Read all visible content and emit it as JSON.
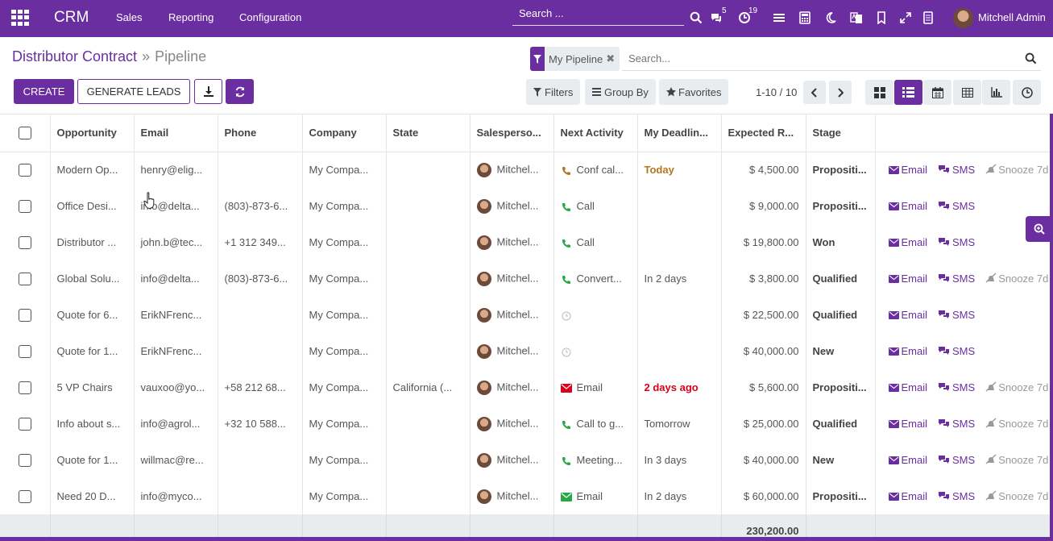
{
  "navbar": {
    "brand": "CRM",
    "menus": [
      "Sales",
      "Reporting",
      "Configuration"
    ],
    "search_placeholder": "Search ...",
    "chat_badge": "5",
    "activity_badge": "19",
    "user_name": "Mitchell Admin"
  },
  "breadcrumb": {
    "parent": "Distributor Contract",
    "separator": "»",
    "current": "Pipeline"
  },
  "buttons": {
    "create": "CREATE",
    "generate_leads": "GENERATE LEADS"
  },
  "search": {
    "facet_label": "My Pipeline",
    "facet_close": "✖",
    "placeholder": "Search..."
  },
  "filters": {
    "filters": "Filters",
    "group_by": "Group By",
    "favorites": "Favorites"
  },
  "pager": {
    "text": "1-10 / 10"
  },
  "table": {
    "headers": [
      "Opportunity",
      "Email",
      "Phone",
      "Company",
      "State",
      "Salesperso...",
      "Next Activity",
      "My Deadlin...",
      "Expected R...",
      "Stage"
    ],
    "rows": [
      {
        "opportunity": "Modern Op...",
        "email": "henry@elig...",
        "phone": "",
        "company": "My Compa...",
        "state": "",
        "salesperson": "Mitchel...",
        "activity": "Conf cal...",
        "activity_type": "phone-brown",
        "deadline": "Today",
        "deadline_style": "today",
        "revenue": "$ 4,500.00",
        "stage": "Propositi...",
        "email_action": "Email",
        "sms_action": "SMS",
        "snooze": "Snooze 7d"
      },
      {
        "opportunity": "Office Desi...",
        "email": "info@delta...",
        "phone": "(803)-873-6...",
        "company": "My Compa...",
        "state": "",
        "salesperson": "Mitchel...",
        "activity": "Call",
        "activity_type": "phone-green",
        "deadline": "",
        "deadline_style": "",
        "revenue": "$ 9,000.00",
        "stage": "Propositi...",
        "email_action": "Email",
        "sms_action": "SMS",
        "snooze": ""
      },
      {
        "opportunity": "Distributor ...",
        "email": "john.b@tec...",
        "phone": "+1 312 349...",
        "company": "My Compa...",
        "state": "",
        "salesperson": "Mitchel...",
        "activity": "Call",
        "activity_type": "phone-green",
        "deadline": "",
        "deadline_style": "",
        "revenue": "$ 19,800.00",
        "stage": "Won",
        "email_action": "Email",
        "sms_action": "SMS",
        "snooze": ""
      },
      {
        "opportunity": "Global Solu...",
        "email": "info@delta...",
        "phone": "(803)-873-6...",
        "company": "My Compa...",
        "state": "",
        "salesperson": "Mitchel...",
        "activity": "Convert...",
        "activity_type": "phone-green",
        "deadline": "In 2 days",
        "deadline_style": "",
        "revenue": "$ 3,800.00",
        "stage": "Qualified",
        "email_action": "Email",
        "sms_action": "SMS",
        "snooze": "Snooze 7d"
      },
      {
        "opportunity": "Quote for 6...",
        "email": "ErikNFrenc...",
        "phone": "",
        "company": "My Compa...",
        "state": "",
        "salesperson": "Mitchel...",
        "activity": "",
        "activity_type": "clock",
        "deadline": "",
        "deadline_style": "",
        "revenue": "$ 22,500.00",
        "stage": "Qualified",
        "email_action": "Email",
        "sms_action": "SMS",
        "snooze": ""
      },
      {
        "opportunity": "Quote for 1...",
        "email": "ErikNFrenc...",
        "phone": "",
        "company": "My Compa...",
        "state": "",
        "salesperson": "Mitchel...",
        "activity": "",
        "activity_type": "clock",
        "deadline": "",
        "deadline_style": "",
        "revenue": "$ 40,000.00",
        "stage": "New",
        "email_action": "Email",
        "sms_action": "SMS",
        "snooze": ""
      },
      {
        "opportunity": "5 VP Chairs",
        "email": "vauxoo@yo...",
        "phone": "+58 212 68...",
        "company": "My Compa...",
        "state": "California (...",
        "salesperson": "Mitchel...",
        "activity": "Email",
        "activity_type": "mail-red",
        "deadline": "2 days ago",
        "deadline_style": "late",
        "revenue": "$ 5,600.00",
        "stage": "Propositi...",
        "email_action": "Email",
        "sms_action": "SMS",
        "snooze": "Snooze 7d"
      },
      {
        "opportunity": "Info about s...",
        "email": "info@agrol...",
        "phone": "+32 10 588...",
        "company": "My Compa...",
        "state": "",
        "salesperson": "Mitchel...",
        "activity": "Call to g...",
        "activity_type": "phone-green",
        "deadline": "Tomorrow",
        "deadline_style": "",
        "revenue": "$ 25,000.00",
        "stage": "Qualified",
        "email_action": "Email",
        "sms_action": "SMS",
        "snooze": "Snooze 7d"
      },
      {
        "opportunity": "Quote for 1...",
        "email": "willmac@re...",
        "phone": "",
        "company": "My Compa...",
        "state": "",
        "salesperson": "Mitchel...",
        "activity": "Meeting...",
        "activity_type": "phone-green",
        "deadline": "In 3 days",
        "deadline_style": "",
        "revenue": "$ 40,000.00",
        "stage": "New",
        "email_action": "Email",
        "sms_action": "SMS",
        "snooze": "Snooze 7d"
      },
      {
        "opportunity": "Need 20 D...",
        "email": "info@myco...",
        "phone": "",
        "company": "My Compa...",
        "state": "",
        "salesperson": "Mitchel...",
        "activity": "Email",
        "activity_type": "mail-green",
        "deadline": "In 2 days",
        "deadline_style": "",
        "revenue": "$ 60,000.00",
        "stage": "Propositi...",
        "email_action": "Email",
        "sms_action": "SMS",
        "snooze": "Snooze 7d"
      }
    ],
    "total_revenue": "230,200.00"
  },
  "colors": {
    "brand": "#6a2ea1",
    "late": "#d9001b",
    "today": "#b5761e",
    "call": "#28a745"
  }
}
